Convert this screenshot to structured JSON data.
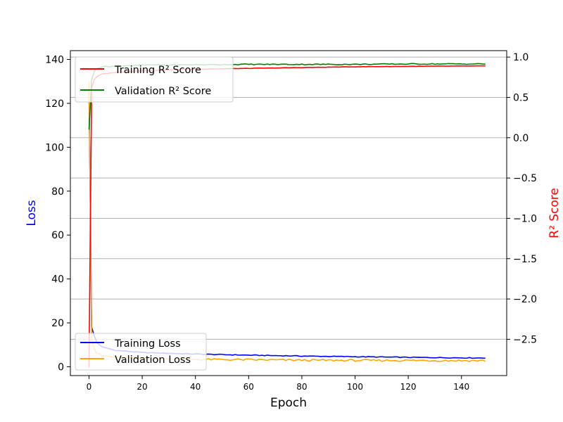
{
  "chart_data": {
    "type": "line",
    "title": "",
    "xlabel": "Epoch",
    "ylabel_left": "Loss",
    "ylabel_right": "R² Score",
    "xlim": [
      -7,
      157
    ],
    "ylim_left": [
      -4,
      144
    ],
    "ylim_right": [
      -2.95,
      1.08
    ],
    "xticks": [
      0,
      20,
      40,
      60,
      80,
      100,
      120,
      140
    ],
    "yticks_left": [
      0,
      20,
      40,
      60,
      80,
      100,
      120,
      140
    ],
    "yticks_right": [
      1.0,
      0.5,
      0.0,
      -0.5,
      -1.0,
      -1.5,
      -2.0,
      -2.5
    ],
    "ytick_labels_right": [
      "1.0",
      "0.5",
      "0.0",
      "−0.5",
      "−1.0",
      "−1.5",
      "−2.0",
      "−2.5"
    ],
    "grid": "right-axis horizontal",
    "colors": {
      "training_loss": "#0000ff",
      "validation_loss": "#ffa500",
      "training_r2": "#ff0000",
      "validation_r2": "#008000",
      "left_label": "#0000ff",
      "right_label": "#ff0000",
      "grid": "#b0b0b0"
    },
    "loss_legend": {
      "placement": "lower-left",
      "entries": [
        "Training Loss",
        "Validation Loss"
      ]
    },
    "r2_legend": {
      "placement": "upper-left",
      "entries": [
        "Training R² Score",
        "Validation R² Score"
      ]
    },
    "series": [
      {
        "name": "Training Loss",
        "axis": "left",
        "epochs": 150,
        "anchors": [
          [
            0,
            126
          ],
          [
            1,
            18
          ],
          [
            2,
            14
          ],
          [
            3,
            11
          ],
          [
            5,
            9
          ],
          [
            10,
            7.5
          ],
          [
            20,
            6.5
          ],
          [
            40,
            5.8
          ],
          [
            60,
            5.3
          ],
          [
            80,
            4.9
          ],
          [
            100,
            4.6
          ],
          [
            120,
            4.3
          ],
          [
            149,
            4.0
          ]
        ]
      },
      {
        "name": "Validation Loss",
        "axis": "left",
        "epochs": 150,
        "anchors": [
          [
            0,
            130
          ],
          [
            1,
            12
          ],
          [
            2,
            8
          ],
          [
            3,
            6
          ],
          [
            5,
            5
          ],
          [
            10,
            4.2
          ],
          [
            20,
            3.8
          ],
          [
            40,
            3.4
          ],
          [
            60,
            3.2
          ],
          [
            80,
            3.0
          ],
          [
            100,
            2.9
          ],
          [
            120,
            2.9
          ],
          [
            149,
            2.8
          ]
        ]
      },
      {
        "name": "Training R² Score",
        "axis": "right",
        "epochs": 150,
        "anchors": [
          [
            0,
            -2.85
          ],
          [
            1,
            0.62
          ],
          [
            2,
            0.72
          ],
          [
            3,
            0.76
          ],
          [
            5,
            0.79
          ],
          [
            10,
            0.81
          ],
          [
            20,
            0.83
          ],
          [
            40,
            0.85
          ],
          [
            60,
            0.86
          ],
          [
            80,
            0.87
          ],
          [
            100,
            0.88
          ],
          [
            120,
            0.885
          ],
          [
            149,
            0.89
          ]
        ]
      },
      {
        "name": "Validation R² Score",
        "axis": "right",
        "epochs": 150,
        "anchors": [
          [
            0,
            0.1
          ],
          [
            1,
            0.72
          ],
          [
            2,
            0.83
          ],
          [
            3,
            0.86
          ],
          [
            5,
            0.88
          ],
          [
            10,
            0.89
          ],
          [
            20,
            0.9
          ],
          [
            40,
            0.905
          ],
          [
            60,
            0.91
          ],
          [
            80,
            0.91
          ],
          [
            100,
            0.91
          ],
          [
            120,
            0.915
          ],
          [
            149,
            0.915
          ]
        ]
      }
    ]
  }
}
